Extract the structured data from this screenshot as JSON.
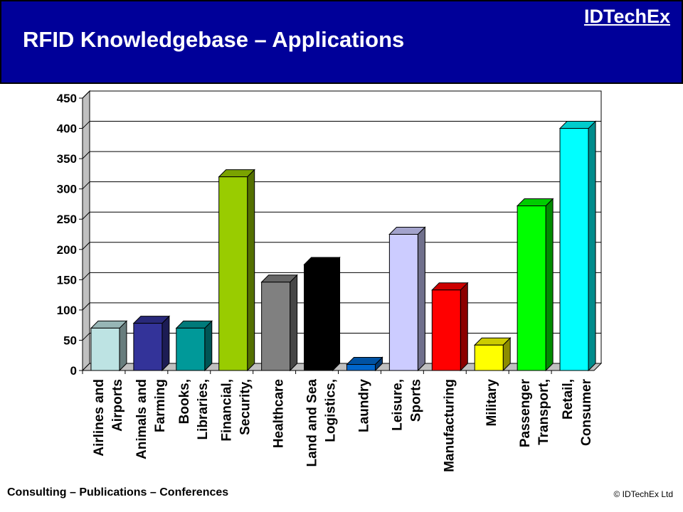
{
  "header": {
    "title": "RFID Knowledgebase – Applications",
    "brand": "IDTechEx",
    "background": "#000099"
  },
  "footer": {
    "left": "Consulting – Publications – Conferences",
    "right": "© IDTechEx Ltd"
  },
  "chart_data": {
    "type": "bar",
    "style": "3d",
    "title": "",
    "xlabel": "",
    "ylabel": "",
    "ylim": [
      0,
      450
    ],
    "yticks": [
      0,
      50,
      100,
      150,
      200,
      250,
      300,
      350,
      400,
      450
    ],
    "grid": true,
    "legend": "none",
    "categories": [
      {
        "lines": [
          "Airlines and",
          "Airports"
        ],
        "value": 70,
        "color": "#bde3e3"
      },
      {
        "lines": [
          "Animals and",
          "Farming"
        ],
        "value": 78,
        "color": "#333399"
      },
      {
        "lines": [
          "Books,",
          "Libraries,"
        ],
        "value": 70,
        "color": "#009999"
      },
      {
        "lines": [
          "Financial,",
          "Security,"
        ],
        "value": 320,
        "color": "#99cc00"
      },
      {
        "lines": [
          "Healthcare"
        ],
        "value": 146,
        "color": "#808080"
      },
      {
        "lines": [
          "Land and Sea",
          "Logistics,"
        ],
        "value": 175,
        "color": "#000000"
      },
      {
        "lines": [
          "Laundry"
        ],
        "value": 10,
        "color": "#0066cc"
      },
      {
        "lines": [
          "Leisure,",
          "Sports"
        ],
        "value": 225,
        "color": "#ccccff"
      },
      {
        "lines": [
          "Manufacturing"
        ],
        "value": 133,
        "color": "#ff0000"
      },
      {
        "lines": [
          "Military"
        ],
        "value": 42,
        "color": "#ffff00"
      },
      {
        "lines": [
          "Passenger",
          "Transport,"
        ],
        "value": 272,
        "color": "#00ff00"
      },
      {
        "lines": [
          "Retail,",
          "Consumer"
        ],
        "value": 400,
        "color": "#00ffff"
      }
    ]
  }
}
